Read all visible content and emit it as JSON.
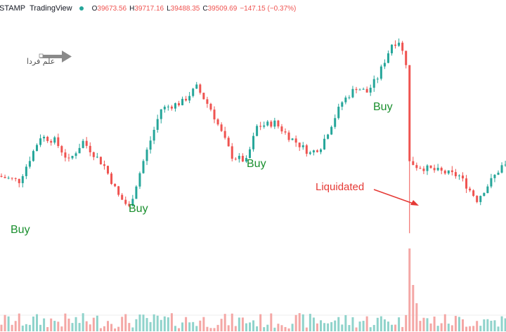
{
  "header": {
    "symbol_fragment": "STAMP",
    "source": "TradingView",
    "status_dot_color": "#26a69a",
    "ohlc": [
      {
        "key": "O",
        "value": "39673.56"
      },
      {
        "key": "H",
        "value": "39717.16"
      },
      {
        "key": "L",
        "value": "39488.35"
      },
      {
        "key": "C",
        "value": "39509.69"
      }
    ],
    "change": "−147.15 (−0.37%)"
  },
  "watermark": {
    "logo_text": "علم فردا",
    "logo_icon": "arrow-right-icon"
  },
  "annotations": {
    "buy_1": "Buy",
    "buy_2": "Buy",
    "buy_3": "Buy",
    "buy_4": "Buy",
    "liquidated": "Liquidated"
  },
  "colors": {
    "up": "#26a69a",
    "down": "#ef5350",
    "volume_up": "#8fd3cb",
    "volume_down": "#f4a7a5",
    "buy_text": "#1a8f2e",
    "liquidated_text": "#e53935"
  },
  "chart_data": {
    "type": "candlestick",
    "price_path_knots": [
      [
        0,
        39200
      ],
      [
        6,
        39150
      ],
      [
        12,
        39600
      ],
      [
        16,
        39560
      ],
      [
        20,
        39350
      ],
      [
        24,
        39550
      ],
      [
        30,
        39300
      ],
      [
        34,
        39000
      ],
      [
        37,
        38880
      ],
      [
        41,
        39350
      ],
      [
        46,
        39880
      ],
      [
        52,
        39950
      ],
      [
        56,
        40100
      ],
      [
        60,
        39880
      ],
      [
        66,
        39400
      ],
      [
        70,
        39350
      ],
      [
        73,
        39700
      ],
      [
        78,
        39740
      ],
      [
        82,
        39600
      ],
      [
        88,
        39430
      ],
      [
        91,
        39500
      ],
      [
        97,
        39950
      ],
      [
        101,
        40100
      ],
      [
        104,
        40050
      ],
      [
        107,
        40200
      ],
      [
        111,
        40540
      ],
      [
        113,
        40570
      ],
      [
        115,
        40350
      ],
      [
        116,
        39350
      ],
      [
        118,
        39300
      ],
      [
        124,
        39250
      ],
      [
        130,
        39200
      ],
      [
        135,
        38960
      ],
      [
        142,
        39300
      ]
    ],
    "liquidation_wick_index": 115,
    "volume_spike_index": 115
  }
}
